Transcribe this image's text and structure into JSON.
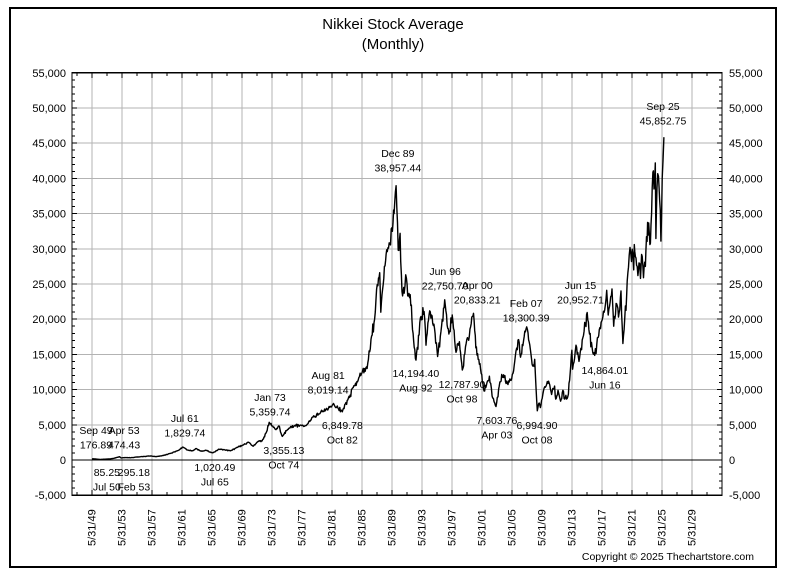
{
  "footer": {
    "copyright": "Copyright © 2025 Thechartstore.com"
  },
  "chart_data": {
    "type": "line",
    "title": "Nikkei Stock Average",
    "subtitle": "(Monthly)",
    "grid": true,
    "legend_position": "none",
    "line_color": "#000000",
    "grid_color": "#b3b3b3",
    "y_axis": {
      "range": [
        -5000,
        55000
      ],
      "major_step": 5000,
      "minor_step": 1000,
      "labels": [
        "-5,000",
        "0",
        "5,000",
        "10,000",
        "15,000",
        "20,000",
        "25,000",
        "30,000",
        "35,000",
        "40,000",
        "45,000",
        "50,000",
        "55,000"
      ],
      "sides": [
        "left",
        "right"
      ]
    },
    "x_axis": {
      "label_dates": [
        "5/31/49",
        "5/31/53",
        "5/31/57",
        "5/31/61",
        "5/31/65",
        "5/31/69",
        "5/31/73",
        "5/31/77",
        "5/31/81",
        "5/31/85",
        "5/31/89",
        "5/31/93",
        "5/31/97",
        "5/31/01",
        "5/31/05",
        "5/31/09",
        "5/31/13",
        "5/31/17",
        "5/31/21",
        "5/31/25",
        "5/31/29"
      ],
      "first_label_year": 1949.417,
      "label_step_years": 4,
      "minor_step_years": 2,
      "range_years": [
        1946.75,
        2033.42
      ]
    },
    "annotations": [
      {
        "date": "Sep 49",
        "price": 176.89,
        "display": "176.89",
        "kind": "peak",
        "lx": 1949.95,
        "ly": 4970
      },
      {
        "date": "Apr 53",
        "price": 474.43,
        "display": "474.43",
        "kind": "peak",
        "lx": 1953.7,
        "ly": 4970
      },
      {
        "date": "Jul 50",
        "price": 85.25,
        "display": "85.25",
        "kind": "trough",
        "lx": 1951.4,
        "ly": -990
      },
      {
        "date": "Feb 53",
        "price": 295.18,
        "display": "295.18",
        "kind": "trough",
        "lx": 1955.0,
        "ly": -990
      },
      {
        "date": "Jul 61",
        "price": 1829.74,
        "display": "1,829.74",
        "kind": "peak",
        "lx": 1961.8,
        "ly": 6680
      },
      {
        "date": "Jul 65",
        "price": 1020.49,
        "display": "1,020.49",
        "kind": "trough",
        "lx": 1965.8,
        "ly": -280
      },
      {
        "date": "Jan 73",
        "price": 5359.74,
        "display": "5,359.74",
        "kind": "peak",
        "lx": 1973.15,
        "ly": 9660
      },
      {
        "date": "Oct 74",
        "price": 3355.13,
        "display": "3,355.13",
        "kind": "trough",
        "lx": 1975.0,
        "ly": 2130
      },
      {
        "date": "Aug 81",
        "price": 8019.14,
        "display": "8,019.14",
        "kind": "peak",
        "lx": 1980.9,
        "ly": 12780
      },
      {
        "date": "Oct 82",
        "price": 6849.78,
        "display": "6,849.78",
        "kind": "trough",
        "lx": 1982.8,
        "ly": 5680
      },
      {
        "date": "Dec 89",
        "price": 38957.44,
        "display": "38,957.44",
        "kind": "peak",
        "lx": 1990.2,
        "ly": 44320
      },
      {
        "date": "Aug 92",
        "price": 14194.4,
        "display": "14,194.40",
        "kind": "trough",
        "lx": 1992.6,
        "ly": 13070
      },
      {
        "date": "Jun 96",
        "price": 22750.7,
        "display": "22,750.70",
        "kind": "peak",
        "lx": 1996.5,
        "ly": 27560
      },
      {
        "date": "Oct 98",
        "price": 12787.9,
        "display": "12,787.90",
        "kind": "trough",
        "lx": 1998.75,
        "ly": 11500
      },
      {
        "date": "Apr 00",
        "price": 20833.21,
        "display": "20,833.21",
        "kind": "peak",
        "lx": 2000.78,
        "ly": 25570
      },
      {
        "date": "Apr 03",
        "price": 7603.76,
        "display": "7,603.76",
        "kind": "trough",
        "lx": 2003.4,
        "ly": 6390
      },
      {
        "date": "Feb 07",
        "price": 18300.39,
        "display": "18,300.39",
        "kind": "peak",
        "lx": 2007.3,
        "ly": 23010
      },
      {
        "date": "Oct 08",
        "price": 6994.9,
        "display": "6,994.90",
        "kind": "trough",
        "lx": 2008.75,
        "ly": 5680
      },
      {
        "date": "Jun 15",
        "price": 20952.71,
        "display": "20,952.71",
        "kind": "peak",
        "lx": 2014.55,
        "ly": 25570
      },
      {
        "date": "Jun 16",
        "price": 14864.01,
        "display": "14,864.01",
        "kind": "trough",
        "lx": 2017.8,
        "ly": 13500
      },
      {
        "date": "Sep 25",
        "price": 45852.75,
        "display": "45,852.75",
        "kind": "peak",
        "lx": 2025.55,
        "ly": 51000
      }
    ],
    "series": [
      {
        "name": "Nikkei Stock Average",
        "color": "#000000",
        "anchors_year_value": [
          [
            1949.42,
            160
          ],
          [
            1949.67,
            176.89
          ],
          [
            1950.54,
            85.25
          ],
          [
            1951.2,
            120
          ],
          [
            1951.9,
            165
          ],
          [
            1952.6,
            320
          ],
          [
            1953.08,
            474.43
          ],
          [
            1953.3,
            295.18
          ],
          [
            1953.9,
            340
          ],
          [
            1954.6,
            320
          ],
          [
            1955.4,
            420
          ],
          [
            1956.3,
            500
          ],
          [
            1957.3,
            570
          ],
          [
            1957.95,
            475
          ],
          [
            1958.8,
            620
          ],
          [
            1959.9,
            950
          ],
          [
            1960.9,
            1350
          ],
          [
            1961.54,
            1829.74
          ],
          [
            1962.1,
            1430
          ],
          [
            1962.8,
            1300
          ],
          [
            1963.3,
            1630
          ],
          [
            1963.95,
            1250
          ],
          [
            1964.6,
            1380
          ],
          [
            1965.54,
            1020.49
          ],
          [
            1966.3,
            1540
          ],
          [
            1967.1,
            1450
          ],
          [
            1967.9,
            1300
          ],
          [
            1968.7,
            1780
          ],
          [
            1969.6,
            2150
          ],
          [
            1970.25,
            2530
          ],
          [
            1970.9,
            1950
          ],
          [
            1971.7,
            2740
          ],
          [
            1972.1,
            2710
          ],
          [
            1972.6,
            3800
          ],
          [
            1973.04,
            5359.74
          ],
          [
            1973.6,
            4650
          ],
          [
            1973.95,
            4310
          ],
          [
            1974.4,
            4790
          ],
          [
            1974.79,
            3355.13
          ],
          [
            1975.5,
            4350
          ],
          [
            1976.4,
            4850
          ],
          [
            1977.3,
            4950
          ],
          [
            1977.9,
            4870
          ],
          [
            1978.8,
            6090
          ],
          [
            1979.7,
            6540
          ],
          [
            1980.6,
            7150
          ],
          [
            1981.62,
            8019.14
          ],
          [
            1982.2,
            7400
          ],
          [
            1982.79,
            6849.78
          ],
          [
            1983.6,
            8800
          ],
          [
            1984.4,
            10600
          ],
          [
            1984.9,
            11300
          ],
          [
            1985.5,
            12700
          ],
          [
            1986.1,
            13000
          ],
          [
            1986.7,
            17600
          ],
          [
            1987.1,
            20000
          ],
          [
            1987.45,
            24900
          ],
          [
            1987.78,
            26600
          ],
          [
            1987.92,
            21000
          ],
          [
            1988.4,
            27500
          ],
          [
            1988.95,
            30100
          ],
          [
            1989.4,
            33000
          ],
          [
            1989.7,
            35000
          ],
          [
            1989.96,
            38957.44
          ],
          [
            1990.25,
            29800
          ],
          [
            1990.5,
            32200
          ],
          [
            1990.75,
            23900
          ],
          [
            1991.05,
            23700
          ],
          [
            1991.25,
            26300
          ],
          [
            1991.6,
            23300
          ],
          [
            1992.0,
            22000
          ],
          [
            1992.3,
            17000
          ],
          [
            1992.62,
            14194.4
          ],
          [
            1993.2,
            20200
          ],
          [
            1993.7,
            21100
          ],
          [
            1993.95,
            16300
          ],
          [
            1994.45,
            21200
          ],
          [
            1995.0,
            19300
          ],
          [
            1995.5,
            14700
          ],
          [
            1995.95,
            18300
          ],
          [
            1996.45,
            22750.7
          ],
          [
            1997.0,
            17900
          ],
          [
            1997.45,
            20600
          ],
          [
            1997.95,
            15300
          ],
          [
            1998.4,
            16800
          ],
          [
            1998.79,
            12787.9
          ],
          [
            1999.3,
            16500
          ],
          [
            1999.9,
            18900
          ],
          [
            2000.29,
            20833.21
          ],
          [
            2000.75,
            14900
          ],
          [
            2001.15,
            13700
          ],
          [
            2001.7,
            9800
          ],
          [
            2002.0,
            10600
          ],
          [
            2002.4,
            11900
          ],
          [
            2002.85,
            8800
          ],
          [
            2003.29,
            7603.76
          ],
          [
            2003.8,
            11100
          ],
          [
            2004.3,
            12100
          ],
          [
            2004.8,
            10900
          ],
          [
            2005.3,
            11300
          ],
          [
            2005.95,
            15500
          ],
          [
            2006.3,
            17100
          ],
          [
            2006.55,
            14600
          ],
          [
            2007.12,
            18300.39
          ],
          [
            2007.55,
            18100
          ],
          [
            2007.95,
            15000
          ],
          [
            2008.25,
            13500
          ],
          [
            2008.45,
            14300
          ],
          [
            2008.79,
            6994.9
          ],
          [
            2009.05,
            8100
          ],
          [
            2009.2,
            7450
          ],
          [
            2009.7,
            10200
          ],
          [
            2010.3,
            11200
          ],
          [
            2010.7,
            9300
          ],
          [
            2011.1,
            10500
          ],
          [
            2011.25,
            8650
          ],
          [
            2011.55,
            9900
          ],
          [
            2011.9,
            8350
          ],
          [
            2012.2,
            9900
          ],
          [
            2012.45,
            8650
          ],
          [
            2012.85,
            8950
          ],
          [
            2013.1,
            11300
          ],
          [
            2013.4,
            15600
          ],
          [
            2013.5,
            12900
          ],
          [
            2013.95,
            16300
          ],
          [
            2014.35,
            14000
          ],
          [
            2014.95,
            17700
          ],
          [
            2015.45,
            20952.71
          ],
          [
            2015.75,
            17900
          ],
          [
            2016.1,
            16000
          ],
          [
            2016.45,
            14864.01
          ],
          [
            2016.9,
            17400
          ],
          [
            2017.45,
            19900
          ],
          [
            2017.95,
            22800
          ],
          [
            2018.05,
            24100
          ],
          [
            2018.25,
            20600
          ],
          [
            2018.75,
            24300
          ],
          [
            2018.98,
            19000
          ],
          [
            2019.3,
            22250
          ],
          [
            2019.62,
            20300
          ],
          [
            2019.95,
            24000
          ],
          [
            2020.2,
            16553
          ],
          [
            2020.45,
            20000
          ],
          [
            2020.7,
            23200
          ],
          [
            2020.95,
            27400
          ],
          [
            2021.15,
            30200
          ],
          [
            2021.35,
            28200
          ],
          [
            2021.55,
            29100
          ],
          [
            2021.65,
            27000
          ],
          [
            2021.72,
            30600
          ],
          [
            2021.95,
            28700
          ],
          [
            2022.2,
            26200
          ],
          [
            2022.35,
            28000
          ],
          [
            2022.55,
            25800
          ],
          [
            2022.7,
            29200
          ],
          [
            2022.95,
            25900
          ],
          [
            2023.2,
            27500
          ],
          [
            2023.5,
            33750
          ],
          [
            2023.8,
            30600
          ],
          [
            2023.95,
            33400
          ],
          [
            2024.2,
            40900
          ],
          [
            2024.35,
            38500
          ],
          [
            2024.53,
            42200
          ],
          [
            2024.6,
            31458
          ],
          [
            2024.75,
            38700
          ],
          [
            2024.95,
            40300
          ],
          [
            2025.1,
            37000
          ],
          [
            2025.27,
            31100
          ],
          [
            2025.45,
            40000
          ],
          [
            2025.55,
            42500
          ],
          [
            2025.67,
            45852.75
          ]
        ]
      }
    ]
  }
}
